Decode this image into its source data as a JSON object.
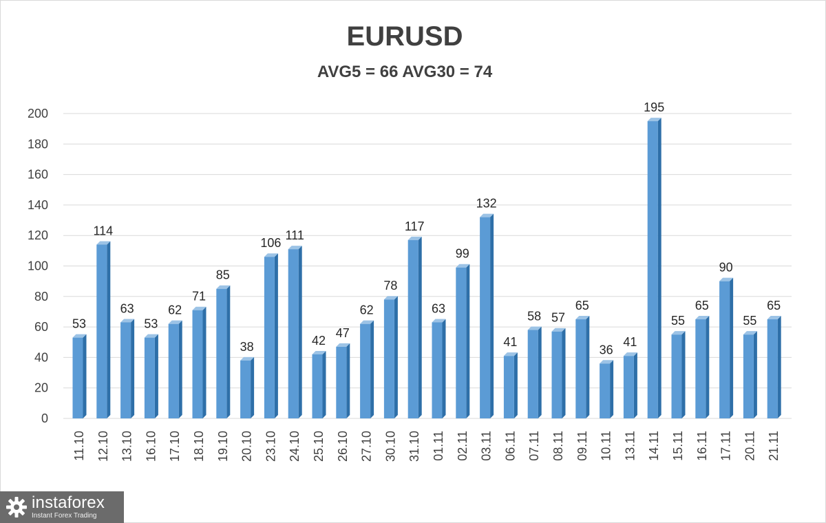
{
  "colors": {
    "bar_front": "#5b9bd5",
    "bar_side": "#2e6fa8",
    "bar_top": "#9cc3e6",
    "grid": "#d9d9d9",
    "text": "#404040",
    "logo_bg": "#6b6b6b"
  },
  "chart_data": {
    "type": "bar",
    "title": "EURUSD",
    "subtitle": "AVG5 = 66 AVG30 = 74",
    "xlabel": "",
    "ylabel": "",
    "ylim": [
      0,
      200
    ],
    "yticks": [
      0,
      20,
      40,
      60,
      80,
      100,
      120,
      140,
      160,
      180,
      200
    ],
    "grid": true,
    "data_labels": true,
    "categories": [
      "11.10",
      "12.10",
      "13.10",
      "16.10",
      "17.10",
      "18.10",
      "19.10",
      "20.10",
      "23.10",
      "24.10",
      "25.10",
      "26.10",
      "27.10",
      "30.10",
      "31.10",
      "01.11",
      "02.11",
      "03.11",
      "06.11",
      "07.11",
      "08.11",
      "09.11",
      "10.11",
      "13.11",
      "14.11",
      "15.11",
      "16.11",
      "17.11",
      "20.11",
      "21.11"
    ],
    "values": [
      53,
      114,
      63,
      53,
      62,
      71,
      85,
      38,
      106,
      111,
      42,
      47,
      62,
      78,
      117,
      63,
      99,
      132,
      41,
      58,
      57,
      65,
      36,
      41,
      195,
      55,
      65,
      90,
      55,
      65
    ]
  },
  "logo": {
    "name": "instaforex",
    "tagline": "Instant Forex Trading",
    "icon": "gear-icon"
  }
}
